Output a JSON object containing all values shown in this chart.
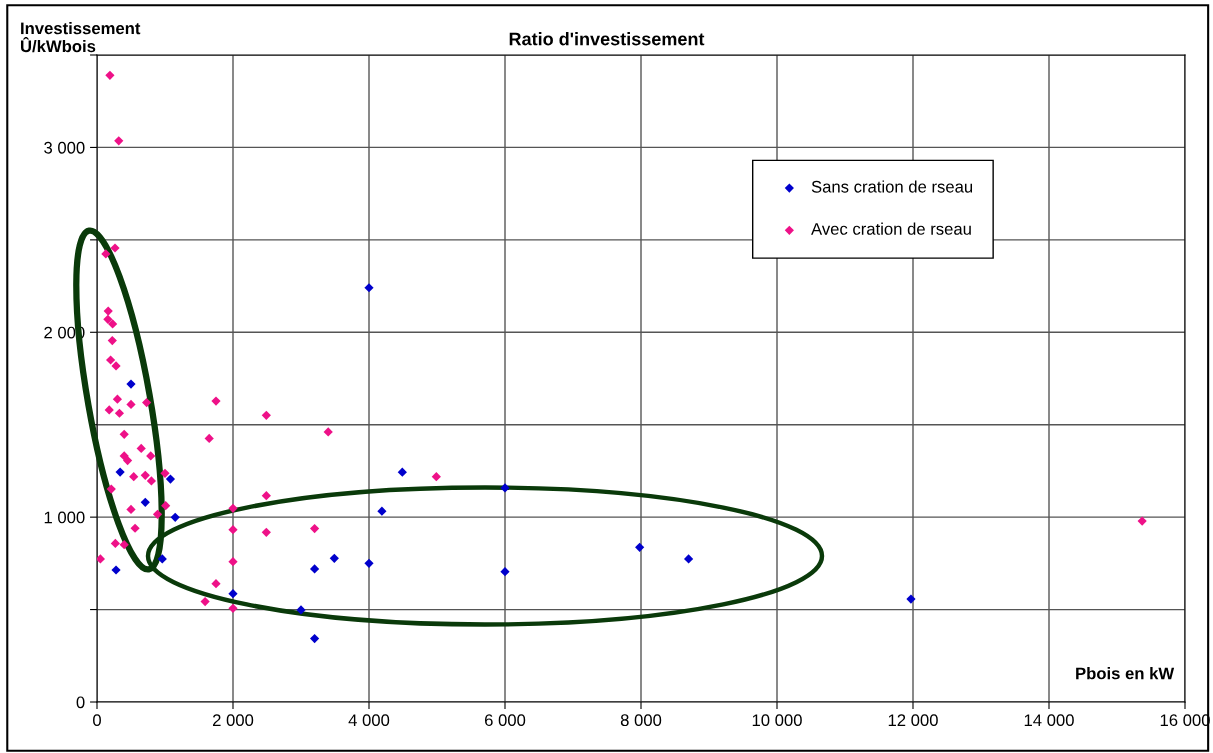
{
  "chart_data": {
    "type": "scatter",
    "title": "Ratio d'investissement",
    "xlabel": "Pbois en kW",
    "ylabel": "Investissement\nÛ/kWbois",
    "xlim": [
      0,
      16000
    ],
    "xticks": [
      {
        "value": 0,
        "label": "0"
      },
      {
        "value": 2000,
        "label": "2 000"
      },
      {
        "value": 4000,
        "label": "4 000"
      },
      {
        "value": 6000,
        "label": "6 000"
      },
      {
        "value": 8000,
        "label": "8 000"
      },
      {
        "value": 10000,
        "label": "10 000"
      },
      {
        "value": 12000,
        "label": "12 000"
      },
      {
        "value": 14000,
        "label": "14 000"
      },
      {
        "value": 16000,
        "label": "16 000"
      }
    ],
    "ylim": [
      0,
      3500
    ],
    "yticks": [
      {
        "value": 0,
        "label": "0"
      },
      {
        "value": 500,
        "label": null
      },
      {
        "value": 1000,
        "label": "1 000"
      },
      {
        "value": 1500,
        "label": null
      },
      {
        "value": 2000,
        "label": "2 000"
      },
      {
        "value": 2500,
        "label": null
      },
      {
        "value": 3000,
        "label": "3 000"
      },
      {
        "value": 3500,
        "label": null
      }
    ],
    "grid": true,
    "legend": "top right",
    "marker": "diamond",
    "series": [
      {
        "name": "Sans cration de rseau",
        "color": "#0000cc",
        "x": [
          500,
          340,
          1080,
          710,
          1150,
          280,
          960,
          3490,
          3200,
          2000,
          3000,
          3200,
          4000,
          4490,
          6000,
          4190,
          4000,
          6000,
          7980,
          8700,
          11970
        ],
        "values": [
          1720,
          1244,
          1206,
          1080,
          999,
          714,
          774,
          777,
          720,
          586,
          498,
          343,
          2241,
          1243,
          1158,
          1032,
          750,
          705,
          837,
          774,
          557
        ]
      },
      {
        "name": "Avec cration de rseau",
        "color": "#ee1188",
        "x": [
          190,
          320,
          265,
          130,
          165,
          160,
          230,
          225,
          200,
          280,
          300,
          500,
          180,
          330,
          730,
          1750,
          2490,
          3400,
          1650,
          400,
          650,
          400,
          450,
          790,
          540,
          710,
          800,
          1000,
          500,
          1010,
          890,
          2000,
          2490,
          560,
          270,
          400,
          2000,
          2490,
          3200,
          50,
          2000,
          1750,
          1590,
          2000,
          210,
          4990,
          15370
        ],
        "values": [
          3390,
          3036,
          2456,
          2424,
          2115,
          2070,
          2045,
          1955,
          1850,
          1818,
          1638,
          1610,
          1580,
          1562,
          1620,
          1628,
          1551,
          1461,
          1426,
          1448,
          1372,
          1331,
          1306,
          1331,
          1219,
          1226,
          1196,
          1237,
          1042,
          1062,
          1015,
          1048,
          1116,
          940,
          858,
          851,
          932,
          918,
          938,
          774,
          759,
          640,
          543,
          507,
          1152,
          1219,
          979
        ]
      }
    ]
  }
}
